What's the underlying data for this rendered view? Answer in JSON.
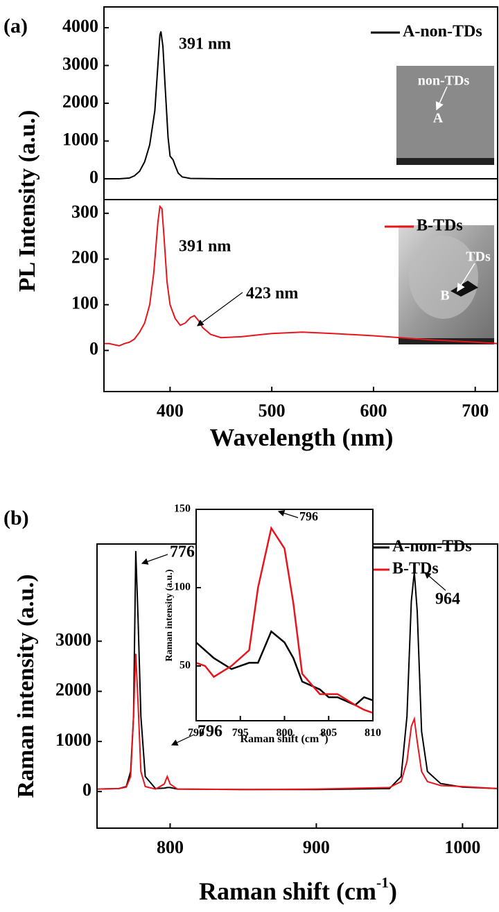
{
  "chart_data": [
    {
      "type": "line",
      "panel_label": "(a)",
      "y_label": "PL Intensity (a.u.)",
      "x": [
        335,
        350,
        360,
        365,
        370,
        375,
        380,
        385,
        388,
        390,
        391,
        393,
        395,
        398,
        400,
        403,
        405,
        408,
        412,
        420,
        450,
        500,
        550,
        600,
        650,
        700,
        722
      ],
      "series": [
        {
          "name": "A-non-TDs",
          "color": "#000000",
          "values": [
            0,
            0,
            20,
            80,
            200,
            450,
            900,
            1800,
            3000,
            3800,
            3900,
            3500,
            2500,
            1100,
            600,
            500,
            350,
            150,
            50,
            10,
            0,
            0,
            0,
            0,
            0,
            0,
            0
          ]
        }
      ],
      "xlim": [
        335,
        722
      ],
      "ylim": [
        -550,
        4550
      ],
      "yticks": [
        0,
        1000,
        2000,
        3000,
        4000
      ],
      "annotations": [
        "391 nm"
      ],
      "inset_labels": [
        "non-TDs",
        "A"
      ]
    },
    {
      "type": "line",
      "x_label": "Wavelength (nm)",
      "x": [
        335,
        340,
        350,
        355,
        360,
        365,
        370,
        375,
        380,
        384,
        388,
        390,
        392,
        394,
        397,
        400,
        405,
        410,
        415,
        420,
        424,
        428,
        432,
        440,
        450,
        470,
        500,
        530,
        560,
        600,
        650,
        700,
        722
      ],
      "series": [
        {
          "name": "B-TDs",
          "color": "#e8141b",
          "values": [
            15,
            15,
            10,
            15,
            18,
            25,
            40,
            60,
            100,
            170,
            280,
            315,
            310,
            250,
            150,
            100,
            70,
            55,
            60,
            72,
            76,
            65,
            50,
            35,
            28,
            30,
            37,
            40,
            37,
            32,
            24,
            18,
            15
          ]
        }
      ],
      "xlim": [
        335,
        722
      ],
      "ylim": [
        -90,
        330
      ],
      "xticks": [
        400,
        500,
        600,
        700
      ],
      "yticks": [
        0,
        100,
        200,
        300
      ],
      "annotations": [
        "391 nm",
        "423 nm"
      ],
      "inset_labels": [
        "TDs",
        "B"
      ]
    },
    {
      "type": "line",
      "panel_label": "(b)",
      "y_label": "Raman intensity (a.u.)",
      "x_label": "Raman shift (cm",
      "x_label_sup": "-1",
      "x_label_end": ")",
      "x": [
        750,
        765,
        770,
        773,
        775,
        776.5,
        778,
        780,
        783,
        790,
        796,
        798,
        800,
        805,
        850,
        900,
        950,
        958,
        962,
        965,
        967,
        969,
        972,
        976,
        985,
        1000,
        1024
      ],
      "series": [
        {
          "name": "A-non-TDs",
          "color": "#000000",
          "values": [
            50,
            60,
            100,
            400,
            1500,
            4800,
            3500,
            1500,
            300,
            60,
            70,
            80,
            80,
            50,
            40,
            40,
            60,
            300,
            1500,
            3800,
            4380,
            3600,
            1200,
            400,
            160,
            90,
            60
          ]
        },
        {
          "name": "B-TDs",
          "color": "#e8141b",
          "values": [
            50,
            60,
            90,
            300,
            1500,
            2750,
            1800,
            400,
            100,
            50,
            150,
            300,
            150,
            50,
            40,
            50,
            80,
            200,
            600,
            1300,
            1450,
            1000,
            400,
            200,
            120,
            100,
            60
          ]
        }
      ],
      "xlim": [
        750,
        1024
      ],
      "ylim": [
        -730,
        4940
      ],
      "xticks": [
        800,
        900,
        1000
      ],
      "yticks": [
        0,
        1000,
        2000,
        3000
      ],
      "annotations": [
        "776",
        "796",
        "964"
      ]
    },
    {
      "type": "line",
      "y_label": "Raman intensity (a.u.)",
      "x_label": "Raman shift (cm",
      "x_label_sup": "-1",
      "x_label_end": ")",
      "x": [
        790,
        791,
        792,
        794,
        796,
        797,
        798.5,
        800,
        801,
        802,
        804,
        805,
        806,
        808,
        809,
        810
      ],
      "series": [
        {
          "color": "#000000",
          "values": [
            65,
            60,
            55,
            48,
            52,
            52,
            72,
            65,
            55,
            40,
            35,
            30,
            30,
            25,
            30,
            28
          ]
        },
        {
          "color": "#e8141b",
          "values": [
            52,
            50,
            43,
            50,
            60,
            100,
            138,
            125,
            90,
            45,
            32,
            32,
            32,
            25,
            22,
            20
          ]
        }
      ],
      "xlim": [
        790,
        810
      ],
      "ylim": [
        15,
        150
      ],
      "xticks": [
        790,
        795,
        800,
        805,
        810
      ],
      "yticks": [
        50,
        100,
        150
      ],
      "annotations": [
        "796"
      ]
    }
  ]
}
